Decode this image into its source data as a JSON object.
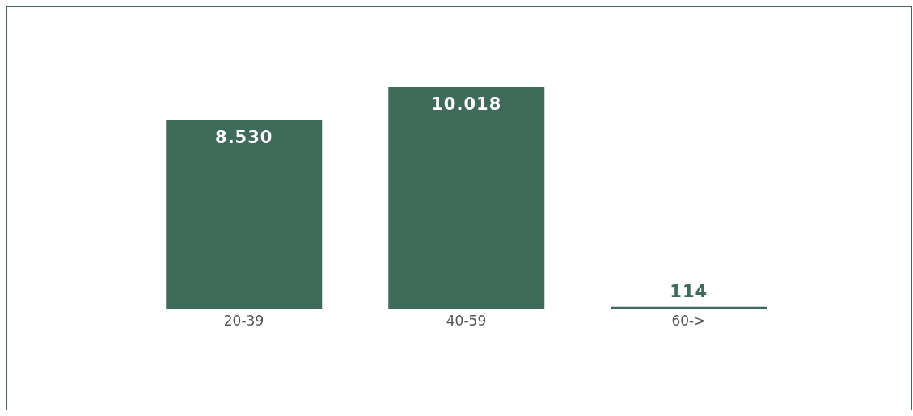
{
  "chart_data": {
    "type": "bar",
    "categories": [
      "20-39",
      "40-59",
      "60->"
    ],
    "values": [
      8530,
      10018,
      114
    ],
    "value_labels": [
      "8.530",
      "10.018",
      "114"
    ],
    "color": "#3f6b5a",
    "grid": false,
    "legend": false
  }
}
